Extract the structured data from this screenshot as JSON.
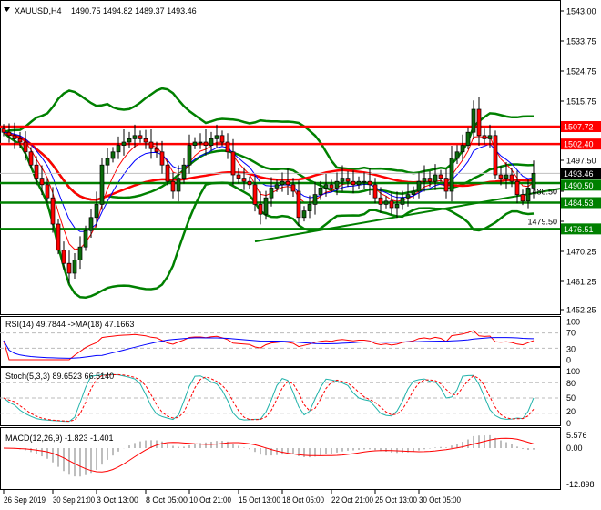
{
  "header": {
    "symbol": "XAUUSD,H4",
    "ohlc": "1490.75 1494.82 1489.37 1493.46",
    "collapse_icon": "triangle-down-icon"
  },
  "colors": {
    "bull": "#0a6b0a",
    "bear": "#ff0000",
    "bands": "#008000",
    "ma_fast": "#ff0000",
    "ma_slow": "#0000ff",
    "resistance": "#ff0000",
    "support": "#008000",
    "rsi": "#ff0000",
    "rsi_ma": "#0000ff",
    "stoch_main": "#20b2aa",
    "stoch_signal": "#ff0000",
    "macd_hist": "#a9a9a9",
    "macd_signal": "#ff0000"
  },
  "chart_data": [
    {
      "type": "candlestick",
      "title": "XAUUSD,H4",
      "ylim": [
        1452.25,
        1543.0
      ],
      "y_ticks": [
        "1543.00",
        "1533.75",
        "1524.75",
        "1515.75",
        "1497.50",
        "1488.50",
        "1479.50",
        "1470.25",
        "1461.25",
        "1452.25"
      ],
      "x_ticks": [
        {
          "label": "26 Sep 2019",
          "bar": 0
        },
        {
          "label": "30 Sep 21:00",
          "bar": 9
        },
        {
          "label": "3 Oct 13:00",
          "bar": 17
        },
        {
          "label": "8 Oct 05:00",
          "bar": 26
        },
        {
          "label": "10 Oct 21:00",
          "bar": 34
        },
        {
          "label": "15 Oct 13:00",
          "bar": 43
        },
        {
          "label": "18 Oct 05:00",
          "bar": 51
        },
        {
          "label": "22 Oct 21:00",
          "bar": 60
        },
        {
          "label": "25 Oct 13:00",
          "bar": 68
        },
        {
          "label": "30 Oct 05:00",
          "bar": 76
        }
      ],
      "closes": [
        1506,
        1505,
        1504,
        1503,
        1500,
        1496,
        1492,
        1490,
        1486,
        1478,
        1470,
        1466,
        1463,
        1467,
        1471,
        1476,
        1480,
        1484,
        1496,
        1498,
        1500,
        1502,
        1503,
        1504,
        1505,
        1504,
        1503,
        1501,
        1500,
        1496,
        1491,
        1488,
        1492,
        1496,
        1502,
        1503,
        1503,
        1502,
        1504,
        1505,
        1503,
        1500,
        1493,
        1492,
        1491,
        1490,
        1484,
        1481,
        1486,
        1489,
        1490,
        1491,
        1490,
        1488,
        1480,
        1482,
        1484,
        1487,
        1489,
        1490,
        1489,
        1491,
        1492,
        1491,
        1490,
        1491,
        1491,
        1490,
        1486,
        1484,
        1485,
        1483,
        1484,
        1486,
        1487,
        1488,
        1491,
        1492,
        1491,
        1493,
        1492,
        1488,
        1498,
        1500,
        1502,
        1506,
        1513,
        1505,
        1504,
        1505,
        1493,
        1492,
        1493,
        1491,
        1487,
        1485,
        1489,
        1493.46
      ],
      "last_price": "1493.46",
      "levels": [
        {
          "price": 1507.72,
          "label": "1507.72",
          "kind": "resistance"
        },
        {
          "price": 1502.4,
          "label": "1502.40",
          "kind": "resistance"
        },
        {
          "price": 1490.5,
          "label": "1490.50",
          "kind": "support"
        },
        {
          "price": 1484.53,
          "label": "1484.53",
          "kind": "support"
        },
        {
          "price": 1476.51,
          "label": "1476.51",
          "kind": "support"
        }
      ],
      "trendline": {
        "start_bar": 46,
        "start_price": 1472.7,
        "end_price": 1488.8
      }
    },
    {
      "type": "line",
      "title": "RSI(14) 49.7844  ->MA(18) 47.1663",
      "ylim": [
        0,
        100
      ],
      "y_ticks": [
        "100",
        "70",
        "30",
        "0"
      ],
      "levels": [
        70,
        30
      ]
    },
    {
      "type": "line",
      "title": "Stoch(5,3,3) 89.6523 66.5140",
      "ylim": [
        0,
        100
      ],
      "y_ticks": [
        "100",
        "80",
        "50",
        "20",
        "0"
      ],
      "levels": [
        80,
        50,
        20
      ]
    },
    {
      "type": "bar",
      "title": "MACD(12,26,9) -1.823 -1.401",
      "ylim": [
        -12.898,
        5.576
      ],
      "y_ticks": [
        "5.576",
        "0.00",
        "-12.898"
      ]
    }
  ]
}
